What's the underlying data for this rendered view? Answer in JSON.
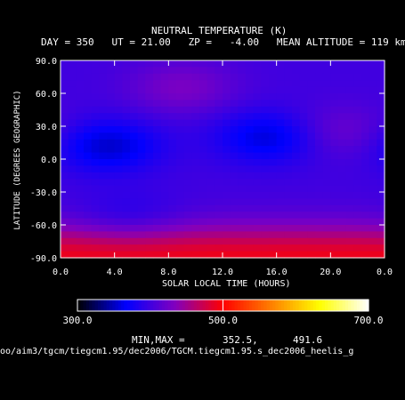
{
  "chart_data": {
    "type": "heatmap",
    "title": "NEUTRAL TEMPERATURE (K)",
    "subtitle": "DAY = 350   UT = 21.00   ZP =   -4.00   MEAN ALTITUDE = 119 km",
    "xlabel": "SOLAR LOCAL TIME (HOURS)",
    "ylabel": "LATITUDE (DEGREES GEOGRAPHIC)",
    "xlim": [
      0,
      24
    ],
    "ylim": [
      -90,
      90
    ],
    "x_ticks": [
      "0.0",
      "4.0",
      "8.0",
      "12.0",
      "16.0",
      "20.0",
      "0.0"
    ],
    "y_ticks": [
      "90.0",
      "60.0",
      "30.0",
      "0.0",
      "-30.0",
      "-60.0",
      "-90.0"
    ],
    "colorbar": {
      "range": [
        300.0,
        700.0
      ],
      "tick_labels": [
        "300.0",
        "500.0",
        "700.0"
      ],
      "colors": [
        "#000000",
        "#0000ff",
        "#8000c0",
        "#ff0000",
        "#ff8000",
        "#ffff00",
        "#ffffff"
      ]
    },
    "features": [
      {
        "kind": "min",
        "lst": 3.5,
        "lat": 12,
        "value": 353
      },
      {
        "kind": "min",
        "lst": 15.5,
        "lat": 20,
        "value": 355
      },
      {
        "kind": "min",
        "lst": 5,
        "lat": -55,
        "value": 380
      },
      {
        "kind": "max",
        "lst": 9,
        "lat": 65,
        "value": 430
      },
      {
        "kind": "max",
        "lst": 20.5,
        "lat": 25,
        "value": 425
      },
      {
        "kind": "max",
        "lst": 12,
        "lat": -90,
        "value": 491
      }
    ]
  },
  "minmax": {
    "label": "MIN,MAX =",
    "min": "352.5,",
    "max": "491.6"
  },
  "file_path": "oo/aim3/tgcm/tiegcm1.95/dec2006/TGCM.tiegcm1.95.s_dec2006_heelis_g"
}
